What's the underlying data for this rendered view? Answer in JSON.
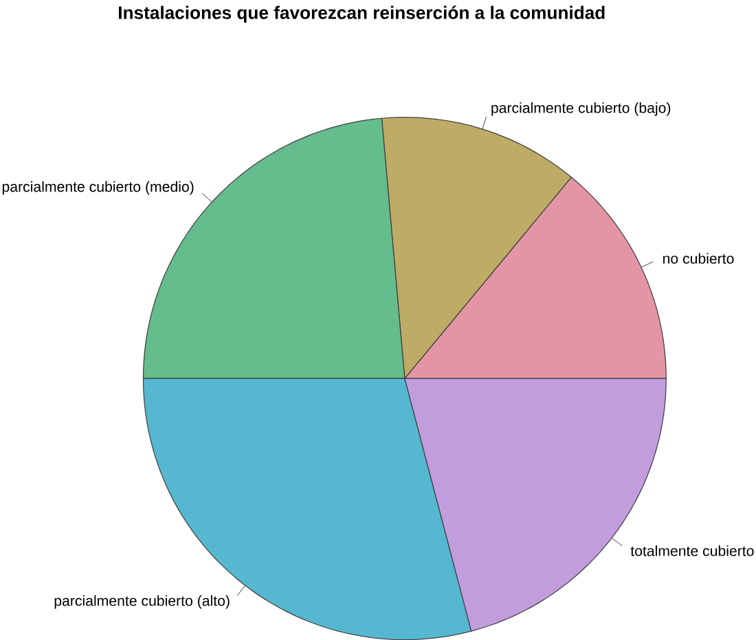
{
  "chart_data": {
    "type": "pie",
    "title": "Instalaciones que favorezcan reinserción a la comunidad",
    "categories": [
      "no cubierto",
      "parcialmente cubierto (bajo)",
      "parcialmente cubierto (medio)",
      "parcialmente cubierto (alto)",
      "totalmente cubierto"
    ],
    "values": [
      14,
      12.4,
      23.6,
      29.1,
      20.9
    ],
    "colors": [
      "#e495a5",
      "#bdab66",
      "#65bc8c",
      "#55b8d0",
      "#c29dde"
    ]
  }
}
